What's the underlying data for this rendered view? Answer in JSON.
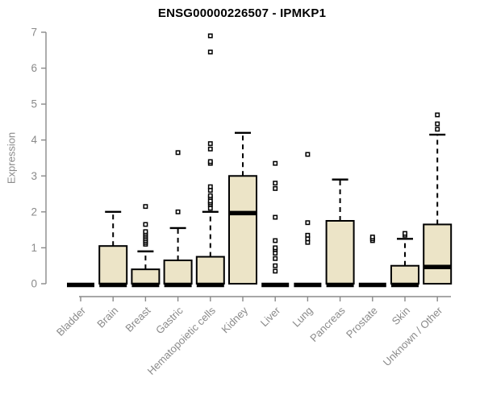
{
  "chart_data": {
    "type": "boxplot",
    "title": "ENSG00000226507 - IPMKP1",
    "ylabel": "Expression",
    "xlabel": "",
    "ylim": [
      0,
      7
    ],
    "yticks": [
      0,
      1,
      2,
      3,
      4,
      5,
      6,
      7
    ],
    "grid": false,
    "legend": "none",
    "marker_style": "open-square",
    "categories": [
      "Bladder",
      "Brain",
      "Breast",
      "Gastric",
      "Hematopoietic cells",
      "Kidney",
      "Liver",
      "Lung",
      "Pancreas",
      "Prostate",
      "Skin",
      "Unknown / Other"
    ],
    "series": [
      {
        "label": "Bladder",
        "q1": 0,
        "median": 0,
        "q3": 0,
        "whisker_low": 0,
        "whisker_high": 0,
        "outliers": []
      },
      {
        "label": "Brain",
        "q1": 0,
        "median": 0,
        "q3": 1.05,
        "whisker_low": 0,
        "whisker_high": 2.0,
        "outliers": []
      },
      {
        "label": "Breast",
        "q1": 0,
        "median": 0,
        "q3": 0.4,
        "whisker_low": 0,
        "whisker_high": 0.9,
        "outliers": [
          1.1,
          1.15,
          1.2,
          1.25,
          1.3,
          1.35,
          1.4,
          1.45,
          1.65,
          2.15
        ]
      },
      {
        "label": "Gastric",
        "q1": 0,
        "median": 0,
        "q3": 0.65,
        "whisker_low": 0,
        "whisker_high": 1.55,
        "outliers": [
          2.0,
          3.65
        ]
      },
      {
        "label": "Hematopoietic cells",
        "q1": 0,
        "median": 0,
        "q3": 0.75,
        "whisker_low": 0,
        "whisker_high": 2.0,
        "outliers": [
          2.1,
          2.2,
          2.25,
          2.3,
          2.4,
          2.45,
          2.6,
          2.7,
          3.35,
          3.4,
          3.75,
          3.9,
          6.45,
          6.9
        ]
      },
      {
        "label": "Kidney",
        "q1": 0,
        "median": 2.0,
        "q3": 3.0,
        "whisker_low": 0,
        "whisker_high": 4.2,
        "outliers": []
      },
      {
        "label": "Liver",
        "q1": 0,
        "median": 0,
        "q3": 0,
        "whisker_low": 0,
        "whisker_high": 0,
        "outliers": [
          0.35,
          0.5,
          0.7,
          0.85,
          0.95,
          1.0,
          1.2,
          1.85,
          2.65,
          2.8,
          3.35
        ]
      },
      {
        "label": "Lung",
        "q1": 0,
        "median": 0,
        "q3": 0,
        "whisker_low": 0,
        "whisker_high": 0,
        "outliers": [
          1.15,
          1.25,
          1.35,
          1.7,
          3.6
        ]
      },
      {
        "label": "Pancreas",
        "q1": 0,
        "median": 0,
        "q3": 1.75,
        "whisker_low": 0,
        "whisker_high": 2.9,
        "outliers": []
      },
      {
        "label": "Prostate",
        "q1": 0,
        "median": 0,
        "q3": 0,
        "whisker_low": 0,
        "whisker_high": 0,
        "outliers": [
          1.2,
          1.25,
          1.3
        ]
      },
      {
        "label": "Skin",
        "q1": 0,
        "median": 0,
        "q3": 0.5,
        "whisker_low": 0,
        "whisker_high": 1.25,
        "outliers": [
          1.35,
          1.4
        ]
      },
      {
        "label": "Unknown / Other",
        "q1": 0,
        "median": 0.5,
        "q3": 1.65,
        "whisker_low": 0,
        "whisker_high": 4.15,
        "outliers": [
          4.3,
          4.45,
          4.7
        ]
      }
    ],
    "colors": {
      "box_fill": "#ece4c7",
      "box_stroke": "#000000",
      "median": "#000000",
      "whisker": "#000000",
      "outlier_stroke": "#000000",
      "outlier_fill": "#ffffff",
      "axis": "#8a8a8a",
      "tick_label": "#8a8a8a",
      "title": "#000000",
      "background": "#ffffff"
    }
  }
}
